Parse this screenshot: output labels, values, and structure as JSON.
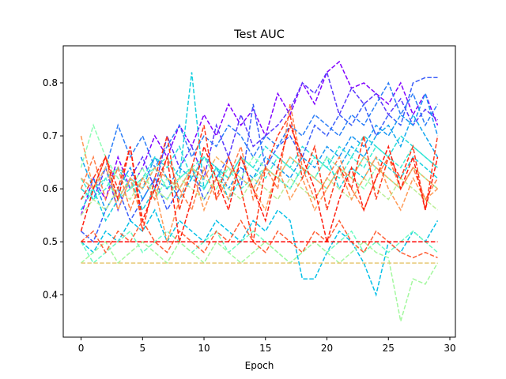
{
  "chart_data": {
    "type": "line",
    "title": "Test AUC",
    "xlabel": "Epoch",
    "ylabel": "",
    "xlim": [
      -1.45,
      30.45
    ],
    "ylim": [
      0.32,
      0.87
    ],
    "x_ticks": [
      0,
      5,
      10,
      15,
      20,
      25,
      30
    ],
    "y_ticks": [
      0.4,
      0.5,
      0.6,
      0.7,
      0.8
    ],
    "x_tick_labels": [
      "0",
      "5",
      "10",
      "15",
      "20",
      "25",
      "30"
    ],
    "y_tick_labels": [
      "0.4",
      "0.5",
      "0.6",
      "0.7",
      "0.8"
    ],
    "grid": false,
    "legend": "none",
    "colormap": "rainbow",
    "line_style": "dashed",
    "x": [
      0,
      1,
      2,
      3,
      4,
      5,
      6,
      7,
      8,
      9,
      10,
      11,
      12,
      13,
      14,
      15,
      16,
      17,
      18,
      19,
      20,
      21,
      22,
      23,
      24,
      25,
      26,
      27,
      28,
      29
    ],
    "series": [
      {
        "color": "#8000ff",
        "values": [
          0.55,
          0.62,
          0.58,
          0.66,
          0.6,
          0.64,
          0.7,
          0.66,
          0.72,
          0.68,
          0.74,
          0.7,
          0.76,
          0.72,
          0.75,
          0.7,
          0.78,
          0.74,
          0.8,
          0.76,
          0.82,
          0.84,
          0.79,
          0.8,
          0.78,
          0.76,
          0.8,
          0.74,
          0.78,
          0.72
        ]
      },
      {
        "color": "#5a38fd",
        "values": [
          0.6,
          0.58,
          0.64,
          0.56,
          0.62,
          0.66,
          0.6,
          0.7,
          0.64,
          0.68,
          0.62,
          0.72,
          0.66,
          0.74,
          0.68,
          0.7,
          0.72,
          0.75,
          0.8,
          0.78,
          0.82,
          0.74,
          0.79,
          0.76,
          0.78,
          0.74,
          0.77,
          0.72,
          0.75,
          0.73
        ]
      },
      {
        "color": "#3c5ef9",
        "values": [
          0.52,
          0.5,
          0.56,
          0.6,
          0.54,
          0.58,
          0.62,
          0.56,
          0.6,
          0.64,
          0.58,
          0.62,
          0.66,
          0.6,
          0.76,
          0.64,
          0.68,
          0.7,
          0.66,
          0.72,
          0.7,
          0.74,
          0.72,
          0.76,
          0.7,
          0.74,
          0.72,
          0.8,
          0.81,
          0.81
        ]
      },
      {
        "color": "#2c7ef7",
        "values": [
          0.62,
          0.6,
          0.64,
          0.72,
          0.66,
          0.7,
          0.64,
          0.68,
          0.72,
          0.66,
          0.7,
          0.68,
          0.72,
          0.7,
          0.66,
          0.7,
          0.68,
          0.72,
          0.7,
          0.74,
          0.72,
          0.7,
          0.74,
          0.72,
          0.76,
          0.8,
          0.74,
          0.78,
          0.72,
          0.76
        ]
      },
      {
        "color": "#1996f3",
        "values": [
          0.58,
          0.62,
          0.56,
          0.6,
          0.64,
          0.58,
          0.62,
          0.6,
          0.64,
          0.62,
          0.66,
          0.64,
          0.6,
          0.64,
          0.62,
          0.66,
          0.64,
          0.62,
          0.66,
          0.64,
          0.68,
          0.66,
          0.7,
          0.68,
          0.72,
          0.7,
          0.74,
          0.72,
          0.78,
          0.7
        ]
      },
      {
        "color": "#12a6ef",
        "values": [
          0.66,
          0.6,
          0.64,
          0.58,
          0.62,
          0.6,
          0.66,
          0.62,
          0.58,
          0.62,
          0.6,
          0.64,
          0.62,
          0.66,
          0.6,
          0.64,
          0.62,
          0.6,
          0.64,
          0.62,
          0.66,
          0.64,
          0.68,
          0.66,
          0.7,
          0.72,
          0.68,
          0.74,
          0.7,
          0.66
        ]
      },
      {
        "color": "#06c0e7",
        "values": [
          0.5,
          0.48,
          0.52,
          0.5,
          0.54,
          0.52,
          0.56,
          0.5,
          0.54,
          0.52,
          0.5,
          0.54,
          0.52,
          0.5,
          0.54,
          0.52,
          0.56,
          0.54,
          0.43,
          0.43,
          0.48,
          0.52,
          0.5,
          0.46,
          0.4,
          0.5,
          0.48,
          0.52,
          0.5,
          0.54
        ]
      },
      {
        "color": "#1ad0df",
        "values": [
          0.56,
          0.6,
          0.54,
          0.58,
          0.62,
          0.56,
          0.6,
          0.58,
          0.62,
          0.82,
          0.6,
          0.64,
          0.58,
          0.62,
          0.6,
          0.64,
          0.62,
          0.6,
          0.64,
          0.62,
          0.66,
          0.6,
          0.64,
          0.62,
          0.66,
          0.64,
          0.62,
          0.66,
          0.64,
          0.62
        ]
      },
      {
        "color": "#2adcda",
        "values": [
          0.6,
          0.58,
          0.62,
          0.64,
          0.6,
          0.62,
          0.66,
          0.64,
          0.68,
          0.62,
          0.66,
          0.64,
          0.62,
          0.66,
          0.64,
          0.68,
          0.66,
          0.64,
          0.68,
          0.66,
          0.64,
          0.68,
          0.66,
          0.7,
          0.68,
          0.66,
          0.7,
          0.68,
          0.66,
          0.64
        ]
      },
      {
        "color": "#40ecd4",
        "values": [
          0.62,
          0.58,
          0.6,
          0.64,
          0.62,
          0.6,
          0.64,
          0.66,
          0.62,
          0.64,
          0.6,
          0.64,
          0.62,
          0.66,
          0.64,
          0.62,
          0.66,
          0.64,
          0.62,
          0.66,
          0.64,
          0.62,
          0.66,
          0.64,
          0.68,
          0.66,
          0.64,
          0.68,
          0.66,
          0.64
        ]
      },
      {
        "color": "#54f6cb",
        "values": [
          0.58,
          0.6,
          0.62,
          0.58,
          0.6,
          0.62,
          0.64,
          0.6,
          0.62,
          0.64,
          0.66,
          0.62,
          0.64,
          0.6,
          0.62,
          0.64,
          0.62,
          0.66,
          0.64,
          0.62,
          0.6,
          0.64,
          0.62,
          0.66,
          0.64,
          0.62,
          0.6,
          0.64,
          0.62,
          0.6
        ]
      },
      {
        "color": "#6efcc2",
        "values": [
          0.5,
          0.46,
          0.48,
          0.5,
          0.52,
          0.48,
          0.5,
          0.52,
          0.5,
          0.48,
          0.5,
          0.52,
          0.48,
          0.5,
          0.52,
          0.5,
          0.48,
          0.46,
          0.48,
          0.5,
          0.48,
          0.5,
          0.52,
          0.48,
          0.5,
          0.48,
          0.5,
          0.52,
          0.5,
          0.48
        ]
      },
      {
        "color": "#8efeb4",
        "values": [
          0.64,
          0.72,
          0.66,
          0.62,
          0.6,
          0.64,
          0.58,
          0.62,
          0.6,
          0.64,
          0.62,
          0.6,
          0.64,
          0.62,
          0.66,
          0.64,
          0.62,
          0.6,
          0.64,
          0.62,
          0.66,
          0.64,
          0.62,
          0.6,
          0.64,
          0.62,
          0.6,
          0.64,
          0.62,
          0.6
        ]
      },
      {
        "color": "#a4f89f",
        "values": [
          0.46,
          0.48,
          0.5,
          0.46,
          0.48,
          0.5,
          0.48,
          0.46,
          0.5,
          0.48,
          0.46,
          0.5,
          0.48,
          0.46,
          0.48,
          0.5,
          0.48,
          0.46,
          0.48,
          0.5,
          0.48,
          0.46,
          0.48,
          0.5,
          0.48,
          0.47,
          0.35,
          0.43,
          0.42,
          0.46
        ]
      },
      {
        "color": "#bcee98",
        "values": [
          0.55,
          0.58,
          0.56,
          0.6,
          0.58,
          0.62,
          0.6,
          0.58,
          0.62,
          0.6,
          0.58,
          0.62,
          0.6,
          0.58,
          0.62,
          0.6,
          0.58,
          0.62,
          0.6,
          0.58,
          0.62,
          0.6,
          0.58,
          0.62,
          0.6,
          0.58,
          0.62,
          0.6,
          0.58,
          0.56
        ]
      },
      {
        "color": "#d4dc7f",
        "values": [
          0.5,
          0.5,
          0.5,
          0.5,
          0.5,
          0.5,
          0.5,
          0.5,
          0.5,
          0.5,
          0.5,
          0.5,
          0.5,
          0.5,
          0.5,
          0.5,
          0.5,
          0.5,
          0.5,
          0.5,
          0.5,
          0.5,
          0.5,
          0.5,
          0.5,
          0.5,
          0.5,
          0.5,
          0.5,
          0.5
        ]
      },
      {
        "color": "#e6c873",
        "values": [
          0.46,
          0.46,
          0.46,
          0.46,
          0.46,
          0.46,
          0.46,
          0.46,
          0.46,
          0.46,
          0.46,
          0.46,
          0.46,
          0.46,
          0.46,
          0.46,
          0.46,
          0.46,
          0.46,
          0.46,
          0.46,
          0.46,
          0.46,
          0.46,
          0.46,
          0.46,
          0.46,
          0.46,
          0.46,
          0.46
        ]
      },
      {
        "color": "#f6b264",
        "values": [
          0.62,
          0.6,
          0.64,
          0.58,
          0.62,
          0.6,
          0.64,
          0.62,
          0.6,
          0.64,
          0.62,
          0.66,
          0.64,
          0.62,
          0.6,
          0.64,
          0.62,
          0.66,
          0.64,
          0.62,
          0.6,
          0.64,
          0.62,
          0.66,
          0.64,
          0.62,
          0.6,
          0.64,
          0.62,
          0.6
        ]
      },
      {
        "color": "#ff9a56",
        "values": [
          0.7,
          0.6,
          0.66,
          0.56,
          0.62,
          0.54,
          0.6,
          0.5,
          0.58,
          0.64,
          0.56,
          0.62,
          0.58,
          0.66,
          0.6,
          0.56,
          0.64,
          0.58,
          0.62,
          0.56,
          0.6,
          0.64,
          0.58,
          0.62,
          0.66,
          0.6,
          0.56,
          0.62,
          0.58,
          0.6
        ]
      },
      {
        "color": "#ff7e48",
        "values": [
          0.6,
          0.66,
          0.58,
          0.64,
          0.56,
          0.62,
          0.58,
          0.66,
          0.6,
          0.56,
          0.64,
          0.58,
          0.62,
          0.68,
          0.58,
          0.64,
          0.6,
          0.76,
          0.64,
          0.58,
          0.62,
          0.66,
          0.6,
          0.56,
          0.62,
          0.66,
          0.6,
          0.64,
          0.58,
          0.62
        ]
      },
      {
        "color": "#ff5e34",
        "values": [
          0.5,
          0.52,
          0.48,
          0.52,
          0.5,
          0.54,
          0.5,
          0.48,
          0.52,
          0.5,
          0.48,
          0.52,
          0.5,
          0.54,
          0.5,
          0.48,
          0.52,
          0.5,
          0.48,
          0.52,
          0.5,
          0.54,
          0.5,
          0.48,
          0.52,
          0.5,
          0.48,
          0.47,
          0.48,
          0.47
        ]
      },
      {
        "color": "#ff3c1e",
        "values": [
          0.58,
          0.62,
          0.66,
          0.6,
          0.68,
          0.52,
          0.62,
          0.7,
          0.56,
          0.64,
          0.72,
          0.58,
          0.66,
          0.6,
          0.5,
          0.64,
          0.7,
          0.74,
          0.62,
          0.68,
          0.56,
          0.64,
          0.6,
          0.7,
          0.58,
          0.66,
          0.62,
          0.68,
          0.56,
          0.7
        ]
      },
      {
        "color": "#ff1e0f",
        "values": [
          0.52,
          0.6,
          0.66,
          0.58,
          0.68,
          0.54,
          0.6,
          0.66,
          0.5,
          0.58,
          0.68,
          0.62,
          0.56,
          0.66,
          0.6,
          0.54,
          0.64,
          0.72,
          0.66,
          0.6,
          0.5,
          0.58,
          0.64,
          0.56,
          0.62,
          0.68,
          0.6,
          0.66,
          0.56,
          0.66
        ]
      },
      {
        "color": "#ff0000",
        "values": [
          0.5,
          0.5,
          0.5,
          0.5,
          0.5,
          0.5,
          0.5,
          0.5,
          0.5,
          0.5,
          0.5,
          0.5,
          0.5,
          0.5,
          0.5,
          0.5,
          0.5,
          0.5,
          0.5,
          0.5,
          0.5,
          0.5,
          0.5,
          0.5,
          0.5,
          0.5,
          0.5,
          0.5,
          0.5,
          0.5
        ]
      }
    ]
  }
}
